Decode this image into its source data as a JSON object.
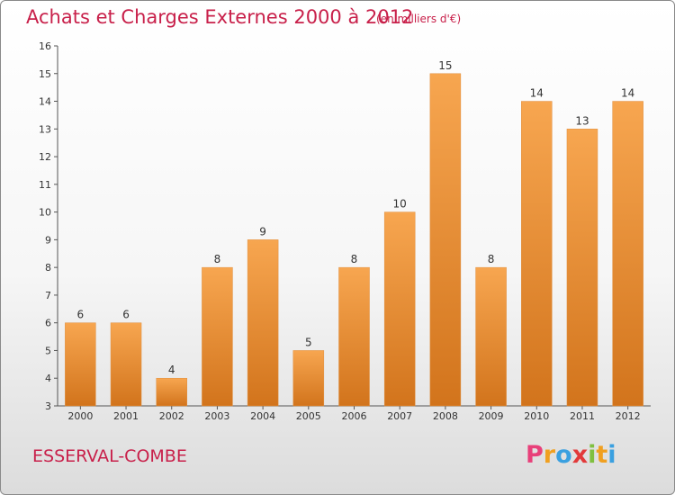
{
  "header": {
    "title": "Achats et Charges Externes 2000 à 2012",
    "subtitle": "(en milliers d'€)"
  },
  "footer": {
    "commune": "ESSERVAL-COMBE",
    "brand_letters": [
      {
        "char": "P",
        "color": "#e8407a"
      },
      {
        "char": "r",
        "color": "#f0a020"
      },
      {
        "char": "o",
        "color": "#3aa0e0"
      },
      {
        "char": "x",
        "color": "#e23a3a"
      },
      {
        "char": "i",
        "color": "#80c040"
      },
      {
        "char": "t",
        "color": "#f0a020"
      },
      {
        "char": "i",
        "color": "#3aa0e0"
      }
    ]
  },
  "chart_data": {
    "type": "bar",
    "title": "Achats et Charges Externes 2000 à 2012",
    "categories": [
      "2000",
      "2001",
      "2002",
      "2003",
      "2004",
      "2005",
      "2006",
      "2007",
      "2008",
      "2009",
      "2010",
      "2011",
      "2012"
    ],
    "values": [
      6,
      6,
      4,
      8,
      9,
      5,
      8,
      10,
      15,
      8,
      14,
      13,
      14
    ],
    "ylim": [
      3,
      16
    ],
    "yticks": [
      3,
      4,
      5,
      6,
      7,
      8,
      9,
      10,
      11,
      12,
      13,
      14,
      15,
      16
    ],
    "grid": false,
    "bar_color_light": "#f7a650",
    "bar_color_dark": "#d2741c"
  }
}
